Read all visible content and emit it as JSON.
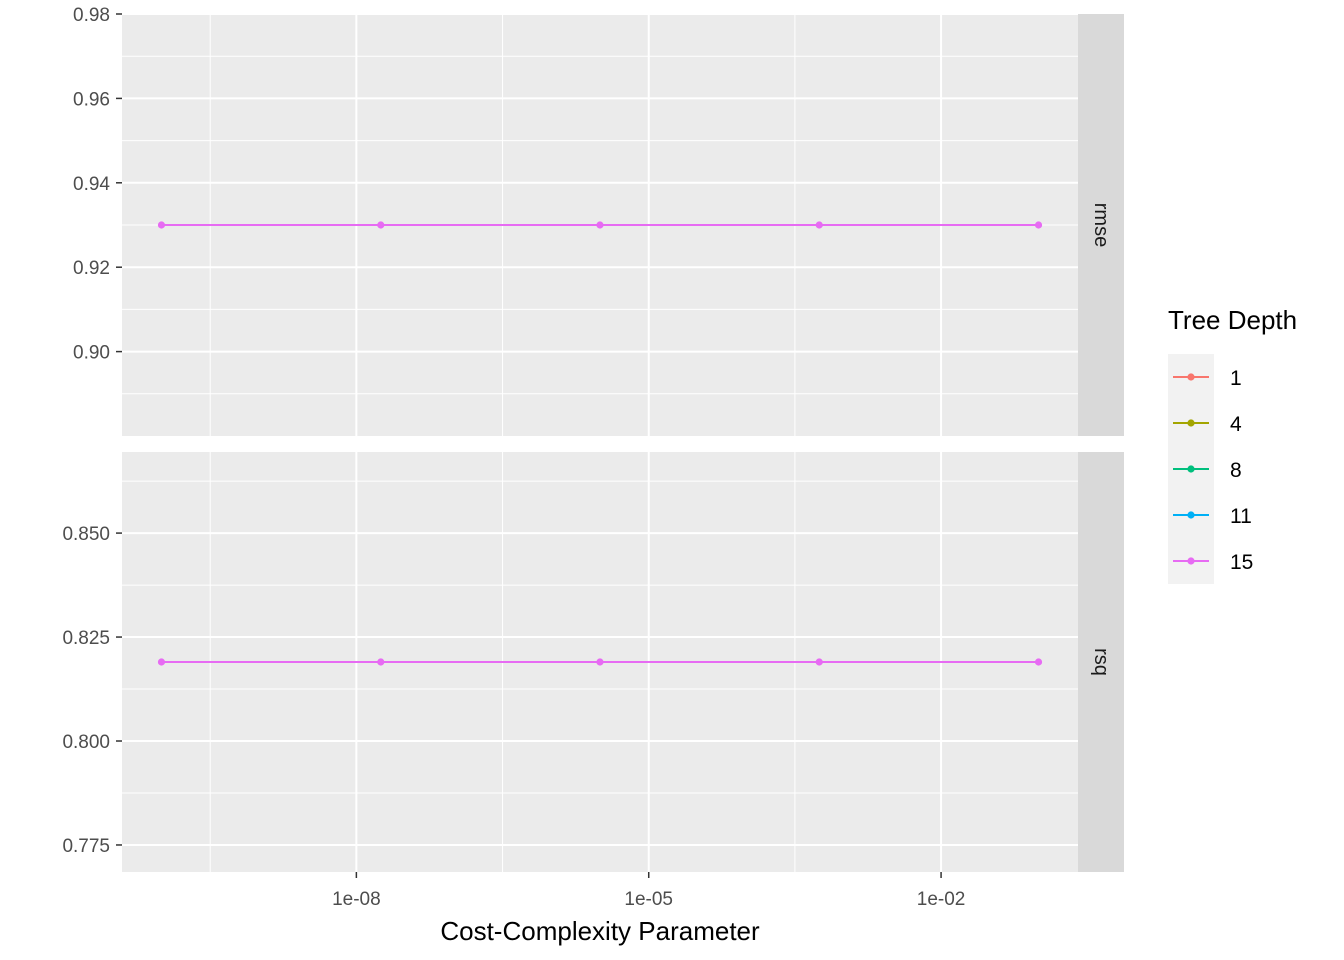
{
  "chart_data": {
    "type": "line",
    "xlabel": "Cost-Complexity Parameter",
    "x_scale": "log10",
    "x_ticks": [
      {
        "value": 1e-08,
        "label": "1e-08"
      },
      {
        "value": 1e-05,
        "label": "1e-05"
      },
      {
        "value": 0.01,
        "label": "1e-02"
      }
    ],
    "x_range": [
      1e-10,
      0.1
    ],
    "grid": true,
    "legend": {
      "title": "Tree Depth",
      "placement": "right",
      "entries": [
        {
          "label": "1",
          "color": "#F8766D"
        },
        {
          "label": "4",
          "color": "#A3A500"
        },
        {
          "label": "8",
          "color": "#00BF7D"
        },
        {
          "label": "11",
          "color": "#00B0F6"
        },
        {
          "label": "15",
          "color": "#E76BF3"
        }
      ]
    },
    "panels": [
      {
        "strip": "rmse",
        "ylim": [
          0.88,
          0.98
        ],
        "y_ticks": [
          {
            "value": 0.9,
            "label": "0.90"
          },
          {
            "value": 0.92,
            "label": "0.92"
          },
          {
            "value": 0.94,
            "label": "0.94"
          },
          {
            "value": 0.96,
            "label": "0.96"
          },
          {
            "value": 0.98,
            "label": "0.98"
          }
        ],
        "series": [
          {
            "name": "15",
            "color": "#E76BF3",
            "x": [
              1e-10,
              1.78e-08,
              3.16e-06,
              0.000562,
              0.1
            ],
            "y": [
              0.93,
              0.93,
              0.93,
              0.93,
              0.93
            ]
          }
        ]
      },
      {
        "strip": "rsq",
        "ylim": [
          0.7685,
          0.8695
        ],
        "y_ticks": [
          {
            "value": 0.775,
            "label": "0.775"
          },
          {
            "value": 0.8,
            "label": "0.800"
          },
          {
            "value": 0.825,
            "label": "0.825"
          },
          {
            "value": 0.85,
            "label": "0.850"
          }
        ],
        "series": [
          {
            "name": "15",
            "color": "#E76BF3",
            "x": [
              1e-10,
              1.78e-08,
              3.16e-06,
              0.000562,
              0.1
            ],
            "y": [
              0.819,
              0.819,
              0.819,
              0.819,
              0.819
            ]
          }
        ]
      }
    ]
  }
}
